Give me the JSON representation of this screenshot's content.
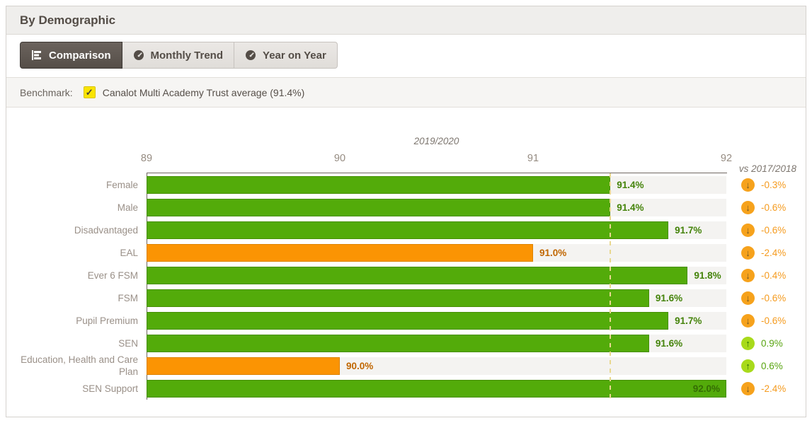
{
  "header": {
    "title": "By Demographic"
  },
  "tabs": [
    {
      "label": "Comparison",
      "icon": "bar-chart-horizontal-icon",
      "active": true
    },
    {
      "label": "Monthly Trend",
      "icon": "gauge-icon",
      "active": false
    },
    {
      "label": "Year on Year",
      "icon": "gauge-icon",
      "active": false
    }
  ],
  "benchmark": {
    "label": "Benchmark:",
    "checkbox_checked": true,
    "checkmark_glyph": "✓",
    "text": "Canalot Multi Academy Trust average (91.4%)",
    "value": 91.4
  },
  "chart_data": {
    "type": "bar",
    "orientation": "horizontal",
    "axis_title": "2019/2020",
    "comparison_header": "vs 2017/2018",
    "xlim": [
      89,
      92
    ],
    "x_ticks": [
      "89",
      "90",
      "91",
      "92"
    ],
    "grid": false,
    "benchmark_value": 91.4,
    "categories": [
      "Female",
      "Male",
      "Disadvantaged",
      "EAL",
      "Ever 6 FSM",
      "FSM",
      "Pupil Premium",
      "SEN",
      "Education, Health and Care Plan",
      "SEN Support"
    ],
    "values": [
      91.4,
      91.4,
      91.7,
      91.0,
      91.8,
      91.6,
      91.7,
      91.6,
      90.0,
      92.0
    ],
    "rows": [
      {
        "label": "Female",
        "value": 91.4,
        "value_label": "91.4%",
        "color": "green",
        "change_label": "-0.3%",
        "direction": "down"
      },
      {
        "label": "Male",
        "value": 91.4,
        "value_label": "91.4%",
        "color": "green",
        "change_label": "-0.6%",
        "direction": "down"
      },
      {
        "label": "Disadvantaged",
        "value": 91.7,
        "value_label": "91.7%",
        "color": "green",
        "change_label": "-0.6%",
        "direction": "down"
      },
      {
        "label": "EAL",
        "value": 91.0,
        "value_label": "91.0%",
        "color": "orange",
        "change_label": "-2.4%",
        "direction": "down"
      },
      {
        "label": "Ever 6 FSM",
        "value": 91.8,
        "value_label": "91.8%",
        "color": "green",
        "change_label": "-0.4%",
        "direction": "down"
      },
      {
        "label": "FSM",
        "value": 91.6,
        "value_label": "91.6%",
        "color": "green",
        "change_label": "-0.6%",
        "direction": "down"
      },
      {
        "label": "Pupil Premium",
        "value": 91.7,
        "value_label": "91.7%",
        "color": "green",
        "change_label": "-0.6%",
        "direction": "down"
      },
      {
        "label": "SEN",
        "value": 91.6,
        "value_label": "91.6%",
        "color": "green",
        "change_label": "0.9%",
        "direction": "up"
      },
      {
        "label": "Education, Health and Care Plan",
        "value": 90.0,
        "value_label": "90.0%",
        "color": "orange",
        "change_label": "0.6%",
        "direction": "up"
      },
      {
        "label": "SEN Support",
        "value": 92.0,
        "value_label": "92.0%",
        "color": "green",
        "change_label": "-2.4%",
        "direction": "down"
      }
    ]
  },
  "colors": {
    "bar_green": "#53ab0a",
    "bar_orange": "#fb9403",
    "benchmark_line": "#e8d88f",
    "change_up": "#a8da1b",
    "change_down": "#f6a21c",
    "header_bg": "#efeeec"
  },
  "glyphs": {
    "arrow_down": "↓",
    "arrow_up": "↑"
  }
}
